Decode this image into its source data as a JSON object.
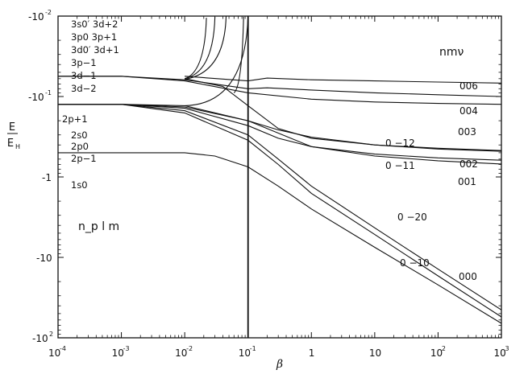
{
  "chart_data": {
    "type": "line",
    "title": "",
    "xlabel": "β",
    "ylabel": "E/E_H",
    "xscale": "log",
    "yscale": "log (negative energies)",
    "xlim": [
      0.0001,
      1000
    ],
    "ylim": [
      -0.01,
      -100
    ],
    "grid": false,
    "x_ticks": [
      {
        "base": "10",
        "exp": "-4"
      },
      {
        "base": "10",
        "exp": "-3"
      },
      {
        "base": "10",
        "exp": "-2"
      },
      {
        "base": "10",
        "exp": "-1"
      },
      {
        "base": "1",
        "exp": ""
      },
      {
        "base": "10",
        "exp": ""
      },
      {
        "base": "10",
        "exp": "2"
      },
      {
        "base": "10",
        "exp": "3"
      }
    ],
    "y_ticks": [
      {
        "base": "-10",
        "exp": "-2"
      },
      {
        "base": "-10",
        "exp": "-1"
      },
      {
        "base": "-1",
        "exp": ""
      },
      {
        "base": "-10",
        "exp": ""
      },
      {
        "base": "-10",
        "exp": "2"
      }
    ],
    "ylabel_parts": {
      "top": "E",
      "bottom": "E",
      "sub": "H"
    },
    "legend_left_title": "n_p l m",
    "legend_right_title": "nmν",
    "left_state_labels": [
      "3s0′ 3d+2",
      "3p0  3p+1",
      "3d0′ 3d+1",
      "3p−1",
      "3d−1",
      "3d−2",
      "2p+1",
      "2s0",
      "2p0",
      "2p−1",
      "1s0"
    ],
    "right_curve_labels": [
      "006",
      "004",
      "003",
      "0 −12",
      "002",
      "0 −11",
      "001",
      "0 −20",
      "0 −10",
      "000"
    ],
    "series": [
      {
        "name": "1s0 / 000",
        "x": [
          0.0001,
          0.001,
          0.01,
          0.03,
          0.1,
          0.3,
          1,
          10,
          100,
          1000
        ],
        "y": [
          -0.5,
          -0.5,
          -0.5,
          -0.55,
          -0.75,
          -1.3,
          -2.5,
          -7.5,
          -22,
          -66
        ]
      },
      {
        "name": "2p−1 / 0 −10",
        "x": [
          0.0001,
          0.001,
          0.01,
          0.1,
          0.3,
          1,
          10,
          100,
          1000
        ],
        "y": [
          -0.125,
          -0.125,
          -0.16,
          -0.35,
          -0.7,
          -1.6,
          -5.2,
          -17,
          -55
        ]
      },
      {
        "name": "2p0 / 0 −20",
        "x": [
          0.0001,
          0.001,
          0.01,
          0.1,
          0.3,
          1,
          10,
          100,
          1000
        ],
        "y": [
          -0.125,
          -0.125,
          -0.15,
          -0.3,
          -0.6,
          -1.3,
          -4.3,
          -14,
          -45
        ]
      },
      {
        "name": "2s0 / 0 −11",
        "x": [
          0.0001,
          0.001,
          0.01,
          0.1,
          0.3,
          1,
          10,
          100,
          1000
        ],
        "y": [
          -0.125,
          -0.125,
          -0.14,
          -0.23,
          -0.33,
          -0.42,
          -0.52,
          -0.58,
          -0.62
        ]
      },
      {
        "name": "2p+1 / 0 −12",
        "x": [
          0.0001,
          0.001,
          0.01,
          0.1,
          0.3,
          1,
          10,
          100,
          1000
        ],
        "y": [
          -0.125,
          -0.125,
          -0.135,
          -0.2,
          -0.26,
          -0.32,
          -0.4,
          -0.45,
          -0.48
        ]
      },
      {
        "name": "001",
        "x": [
          0.0001,
          0.001,
          0.01,
          0.1,
          1,
          10,
          100,
          1000
        ],
        "y": [
          -0.125,
          -0.125,
          -0.13,
          -0.2,
          -0.42,
          -0.55,
          -0.63,
          -0.69
        ]
      },
      {
        "name": "002",
        "x": [
          0.01,
          0.04,
          0.1,
          0.3,
          1,
          10,
          100,
          1000
        ],
        "y": [
          -0.06,
          -0.075,
          -0.13,
          -0.25,
          -0.33,
          -0.4,
          -0.44,
          -0.47
        ]
      },
      {
        "name": "003",
        "x": [
          0.0001,
          0.001,
          0.01,
          0.1,
          1,
          10,
          100,
          1000
        ],
        "y": [
          -0.056,
          -0.056,
          -0.064,
          -0.09,
          -0.108,
          -0.117,
          -0.122,
          -0.125
        ]
      },
      {
        "name": "004",
        "x": [
          0.0001,
          0.001,
          0.01,
          0.1,
          0.2,
          1,
          10,
          100,
          1000
        ],
        "y": [
          -0.056,
          -0.056,
          -0.062,
          -0.08,
          -0.078,
          -0.083,
          -0.09,
          -0.095,
          -0.1
        ]
      },
      {
        "name": "006",
        "x": [
          0.01,
          0.1,
          0.2,
          1,
          10,
          100,
          1000
        ],
        "y": [
          -0.056,
          -0.064,
          -0.059,
          -0.062,
          -0.064,
          -0.066,
          -0.068
        ]
      }
    ]
  }
}
